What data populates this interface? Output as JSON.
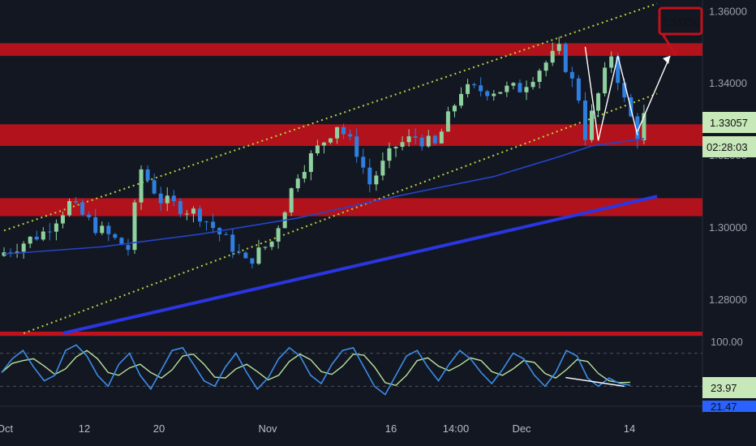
{
  "colors": {
    "background": "#131722",
    "candle_up": "#8fd19e",
    "candle_down": "#2f7fe0",
    "zone": "#c0121c",
    "channel": "#b9d43a",
    "ma": "#2445c8",
    "trendline": "#2a36e0",
    "stoch_k": "#3c8de8",
    "stoch_d": "#b7e39a",
    "price_badge": "#c7e8b9",
    "target_badge": "#c0121c",
    "axis_text": "#9aa0ad"
  },
  "price_axis": {
    "ticks": [
      "1.36000",
      "1.34000",
      "1.32000",
      "1.30000",
      "1.28000"
    ],
    "current_price": "1.33057",
    "countdown": "02:28:03",
    "target_label": "1.34756"
  },
  "indicator_axis": {
    "ticks": [
      "100.00"
    ],
    "stoch_value": "23.97",
    "stoch_value_2": "21.47"
  },
  "time_axis": {
    "ticks": [
      "Oct",
      "12",
      "20",
      "Nov",
      "16",
      "14:00",
      "Dec",
      "14"
    ]
  },
  "chart_data": {
    "type": "candlestick",
    "symbol_axis": "price",
    "ylim": [
      1.2705,
      1.363
    ],
    "grid": false,
    "close_path": [
      [
        0,
        1.293
      ],
      [
        6,
        1.2985
      ],
      [
        10,
        1.3065
      ],
      [
        14,
        1.3
      ],
      [
        19,
        1.294
      ],
      [
        21,
        1.316
      ],
      [
        24,
        1.3075
      ],
      [
        30,
        1.3035
      ],
      [
        35,
        1.2945
      ],
      [
        37,
        1.29
      ],
      [
        41,
        1.296
      ],
      [
        45,
        1.315
      ],
      [
        51,
        1.3285
      ],
      [
        54,
        1.321
      ],
      [
        56,
        1.312
      ],
      [
        60,
        1.3225
      ],
      [
        63,
        1.325
      ],
      [
        66,
        1.3225
      ],
      [
        70,
        1.338
      ],
      [
        75,
        1.338
      ],
      [
        79,
        1.3385
      ],
      [
        82,
        1.344
      ],
      [
        85,
        1.349
      ],
      [
        88,
        1.336
      ],
      [
        89,
        1.3255
      ],
      [
        93,
        1.348
      ],
      [
        95,
        1.335
      ],
      [
        97,
        1.3255
      ],
      [
        98,
        1.3306
      ]
    ],
    "candle_count": 99,
    "resistance_zones": [
      [
        1.3475,
        1.351
      ],
      [
        1.3225,
        1.3285
      ],
      [
        1.303,
        1.308
      ]
    ],
    "support_line_level": 1.2705,
    "channel_upper": [
      [
        0,
        1.299
      ],
      [
        100,
        1.362
      ]
    ],
    "channel_lower": [
      [
        3,
        1.2705
      ],
      [
        100,
        1.337
      ]
    ],
    "trendline": [
      [
        9,
        1.2705
      ],
      [
        100,
        1.3085
      ]
    ],
    "moving_average": [
      [
        0,
        1.2925
      ],
      [
        15,
        1.2945
      ],
      [
        30,
        1.298
      ],
      [
        45,
        1.3025
      ],
      [
        60,
        1.3085
      ],
      [
        75,
        1.314
      ],
      [
        85,
        1.3195
      ],
      [
        90,
        1.3225
      ],
      [
        98,
        1.3245
      ]
    ],
    "projection_arrow": [
      [
        97,
        1.3265
      ],
      [
        102,
        1.3475
      ]
    ],
    "w_pattern": [
      [
        89,
        1.35
      ],
      [
        91,
        1.324
      ],
      [
        94,
        1.3475
      ],
      [
        97,
        1.3255
      ]
    ],
    "stochastic": {
      "ylim": [
        0,
        100
      ],
      "levels": [
        80,
        20
      ],
      "k": [
        45,
        70,
        85,
        55,
        30,
        40,
        85,
        95,
        75,
        40,
        20,
        60,
        80,
        40,
        15,
        50,
        85,
        90,
        60,
        30,
        20,
        55,
        80,
        45,
        15,
        35,
        70,
        90,
        75,
        40,
        25,
        60,
        85,
        90,
        55,
        20,
        5,
        40,
        75,
        85,
        55,
        30,
        60,
        85,
        70,
        45,
        25,
        50,
        80,
        70,
        40,
        20,
        45,
        85,
        75,
        35,
        20,
        35,
        25,
        22
      ],
      "divergence_line": [
        [
          86,
          36
        ],
        [
          95,
          20
        ]
      ]
    }
  }
}
